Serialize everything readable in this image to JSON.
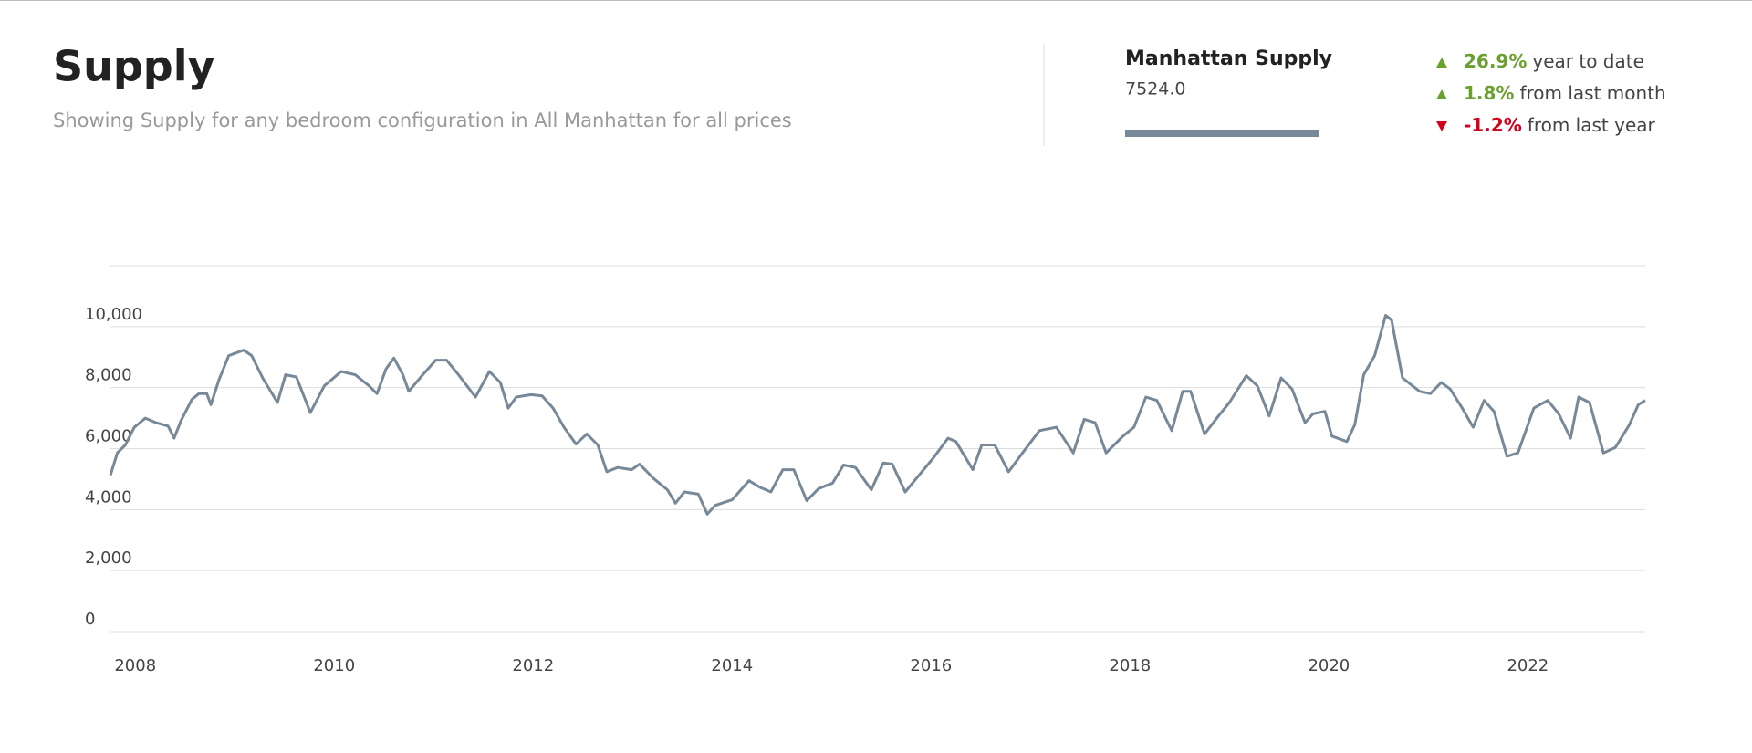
{
  "chart_data": {
    "type": "line",
    "title": "Supply",
    "subtitle": "Showing Supply for any bedroom configuration in All Manhattan for all prices",
    "x": [
      2007.75,
      2007.82,
      2007.9,
      2007.99,
      2008.1,
      2008.21,
      2008.33,
      2008.39,
      2008.46,
      2008.57,
      2008.64,
      2008.72,
      2008.76,
      2008.84,
      2008.94,
      2009.09,
      2009.17,
      2009.28,
      2009.43,
      2009.51,
      2009.62,
      2009.76,
      2009.9,
      2010.07,
      2010.21,
      2010.35,
      2010.43,
      2010.52,
      2010.6,
      2010.69,
      2010.75,
      2010.89,
      2011.02,
      2011.13,
      2011.25,
      2011.42,
      2011.56,
      2011.67,
      2011.75,
      2011.83,
      2011.98,
      2012.09,
      2012.2,
      2012.31,
      2012.43,
      2012.54,
      2012.65,
      2012.74,
      2012.85,
      2012.99,
      2013.07,
      2013.21,
      2013.35,
      2013.43,
      2013.52,
      2013.66,
      2013.75,
      2013.83,
      2014.0,
      2014.17,
      2014.28,
      2014.39,
      2014.51,
      2014.62,
      2014.75,
      2014.87,
      2015.01,
      2015.12,
      2015.24,
      2015.4,
      2015.52,
      2015.61,
      2015.74,
      2015.88,
      2016.02,
      2016.17,
      2016.25,
      2016.42,
      2016.51,
      2016.64,
      2016.78,
      2016.92,
      2017.09,
      2017.26,
      2017.43,
      2017.54,
      2017.65,
      2017.76,
      2017.93,
      2018.04,
      2018.16,
      2018.27,
      2018.42,
      2018.53,
      2018.61,
      2018.75,
      2018.89,
      2019.0,
      2019.17,
      2019.28,
      2019.4,
      2019.52,
      2019.63,
      2019.76,
      2019.84,
      2019.96,
      2020.03,
      2020.18,
      2020.26,
      2020.35,
      2020.46,
      2020.57,
      2020.63,
      2020.74,
      2020.91,
      2021.02,
      2021.13,
      2021.22,
      2021.34,
      2021.45,
      2021.56,
      2021.66,
      2021.79,
      2021.9,
      2022.06,
      2022.2,
      2022.31,
      2022.43,
      2022.51,
      2022.62,
      2022.76,
      2022.88,
      2023.02,
      2023.11,
      2023.18
    ],
    "series": [
      {
        "name": "Manhattan Supply",
        "color": "#778899",
        "values": [
          5130,
          5860,
          6120,
          6700,
          7000,
          6850,
          6740,
          6340,
          6920,
          7620,
          7800,
          7800,
          7440,
          8240,
          9050,
          9230,
          9050,
          8320,
          7510,
          8420,
          8350,
          7180,
          8060,
          8530,
          8420,
          8060,
          7800,
          8610,
          8970,
          8420,
          7880,
          8420,
          8900,
          8900,
          8420,
          7690,
          8530,
          8170,
          7330,
          7690,
          7770,
          7730,
          7330,
          6700,
          6150,
          6480,
          6120,
          5240,
          5380,
          5310,
          5490,
          5020,
          4650,
          4210,
          4580,
          4510,
          3850,
          4140,
          4320,
          4950,
          4730,
          4580,
          5310,
          5310,
          4290,
          4690,
          4870,
          5460,
          5380,
          4650,
          5530,
          5490,
          4580,
          5130,
          5680,
          6340,
          6230,
          5310,
          6120,
          6120,
          5240,
          5860,
          6590,
          6700,
          5860,
          6960,
          6850,
          5860,
          6410,
          6700,
          7690,
          7580,
          6590,
          7880,
          7880,
          6480,
          7070,
          7510,
          8390,
          8060,
          7070,
          8320,
          7950,
          6850,
          7140,
          7220,
          6410,
          6230,
          6780,
          8420,
          9050,
          10370,
          10220,
          8320,
          7880,
          7800,
          8170,
          7950,
          7330,
          6700,
          7580,
          7220,
          5750,
          5860,
          7330,
          7580,
          7140,
          6340,
          7690,
          7510,
          5860,
          6040,
          6780,
          7440,
          7580
        ]
      }
    ],
    "xlim": [
      2007.75,
      2023.18
    ],
    "xticks": [
      2008,
      2010,
      2012,
      2014,
      2016,
      2018,
      2020,
      2022
    ],
    "ylim": [
      0,
      12000
    ],
    "yticks": [
      0,
      {
        "value": 2000,
        "label": "2,000"
      },
      {
        "value": 4000,
        "label": "4,000"
      },
      {
        "value": 6000,
        "label": "6,000"
      },
      {
        "value": 8000,
        "label": "8,000"
      },
      {
        "value": 10000,
        "label": "10,000"
      }
    ],
    "grid": true
  },
  "summary": {
    "title": "Manhattan Supply",
    "value": "7524.0",
    "changes": [
      {
        "value": "26.9%",
        "text": "year to date",
        "direction": "up"
      },
      {
        "value": "1.8%",
        "text": "from last month",
        "direction": "up"
      },
      {
        "value": "-1.2%",
        "text": "from last year",
        "direction": "down"
      }
    ]
  }
}
